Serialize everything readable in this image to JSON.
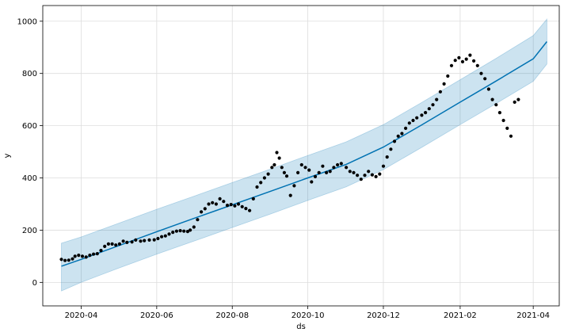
{
  "chart_data": {
    "type": "line",
    "title": "",
    "xlabel": "ds",
    "ylabel": "y",
    "x_range": [
      "2020-03-01",
      "2021-04-22"
    ],
    "ylim": [
      -90,
      1060
    ],
    "grid": true,
    "x_ticks": [
      "2020-04-01",
      "2020-06-01",
      "2020-08-01",
      "2020-10-01",
      "2020-12-01",
      "2021-02-01",
      "2021-04-01"
    ],
    "x_tick_labels": [
      "2020-04",
      "2020-06",
      "2020-08",
      "2020-10",
      "2020-12",
      "2021-02",
      "2021-04"
    ],
    "y_ticks": [
      0,
      200,
      400,
      600,
      800,
      1000
    ],
    "y_tick_labels": [
      "0",
      "200",
      "400",
      "600",
      "800",
      "1000"
    ],
    "colors": {
      "forecast_line": "#0072B2",
      "interval_fill": "#0072B2",
      "observed_points": "#000000"
    },
    "series": [
      {
        "kind": "forecast_line",
        "points": [
          [
            "2020-03-16",
            62
          ],
          [
            "2020-04-01",
            88
          ],
          [
            "2020-05-01",
            140
          ],
          [
            "2020-06-01",
            194
          ],
          [
            "2020-07-01",
            245
          ],
          [
            "2020-08-01",
            297
          ],
          [
            "2020-09-01",
            349
          ],
          [
            "2020-10-01",
            400
          ],
          [
            "2020-11-01",
            452
          ],
          [
            "2020-12-01",
            518
          ],
          [
            "2021-01-01",
            603
          ],
          [
            "2021-02-01",
            690
          ],
          [
            "2021-03-01",
            768
          ],
          [
            "2021-04-01",
            856
          ],
          [
            "2021-04-12",
            922
          ]
        ]
      },
      {
        "kind": "interval_band",
        "upper": [
          [
            "2020-03-16",
            150
          ],
          [
            "2020-04-01",
            174
          ],
          [
            "2020-05-01",
            226
          ],
          [
            "2020-06-01",
            280
          ],
          [
            "2020-07-01",
            330
          ],
          [
            "2020-08-01",
            382
          ],
          [
            "2020-09-01",
            434
          ],
          [
            "2020-10-01",
            486
          ],
          [
            "2020-11-01",
            538
          ],
          [
            "2020-12-01",
            604
          ],
          [
            "2021-01-01",
            689
          ],
          [
            "2021-02-01",
            776
          ],
          [
            "2021-03-01",
            855
          ],
          [
            "2021-04-01",
            945
          ],
          [
            "2021-04-12",
            1008
          ]
        ],
        "lower": [
          [
            "2020-03-16",
            -33
          ],
          [
            "2020-04-01",
            0
          ],
          [
            "2020-05-01",
            54
          ],
          [
            "2020-06-01",
            108
          ],
          [
            "2020-07-01",
            158
          ],
          [
            "2020-08-01",
            210
          ],
          [
            "2020-09-01",
            262
          ],
          [
            "2020-10-01",
            314
          ],
          [
            "2020-11-01",
            366
          ],
          [
            "2020-12-01",
            432
          ],
          [
            "2021-01-01",
            517
          ],
          [
            "2021-02-01",
            604
          ],
          [
            "2021-03-01",
            682
          ],
          [
            "2021-04-01",
            770
          ],
          [
            "2021-04-12",
            836
          ]
        ]
      },
      {
        "kind": "observed_points",
        "points": [
          [
            "2020-03-16",
            88
          ],
          [
            "2020-03-19",
            84
          ],
          [
            "2020-03-22",
            85
          ],
          [
            "2020-03-25",
            90
          ],
          [
            "2020-03-27",
            100
          ],
          [
            "2020-03-30",
            104
          ],
          [
            "2020-04-02",
            100
          ],
          [
            "2020-04-05",
            97
          ],
          [
            "2020-04-08",
            104
          ],
          [
            "2020-04-11",
            108
          ],
          [
            "2020-04-14",
            110
          ],
          [
            "2020-04-17",
            122
          ],
          [
            "2020-04-20",
            138
          ],
          [
            "2020-04-23",
            147
          ],
          [
            "2020-04-26",
            147
          ],
          [
            "2020-04-29",
            143
          ],
          [
            "2020-05-02",
            147
          ],
          [
            "2020-05-05",
            158
          ],
          [
            "2020-05-08",
            153
          ],
          [
            "2020-05-12",
            155
          ],
          [
            "2020-05-15",
            162
          ],
          [
            "2020-05-19",
            158
          ],
          [
            "2020-05-22",
            160
          ],
          [
            "2020-05-26",
            162
          ],
          [
            "2020-05-30",
            163
          ],
          [
            "2020-06-02",
            168
          ],
          [
            "2020-06-05",
            175
          ],
          [
            "2020-06-08",
            178
          ],
          [
            "2020-06-11",
            185
          ],
          [
            "2020-06-14",
            192
          ],
          [
            "2020-06-17",
            196
          ],
          [
            "2020-06-20",
            198
          ],
          [
            "2020-06-23",
            196
          ],
          [
            "2020-06-26",
            195
          ],
          [
            "2020-06-28",
            200
          ],
          [
            "2020-07-01",
            212
          ],
          [
            "2020-07-04",
            240
          ],
          [
            "2020-07-07",
            270
          ],
          [
            "2020-07-10",
            282
          ],
          [
            "2020-07-13",
            300
          ],
          [
            "2020-07-16",
            305
          ],
          [
            "2020-07-19",
            300
          ],
          [
            "2020-07-22",
            320
          ],
          [
            "2020-07-25",
            310
          ],
          [
            "2020-07-28",
            295
          ],
          [
            "2020-07-31",
            298
          ],
          [
            "2020-08-03",
            293
          ],
          [
            "2020-08-06",
            300
          ],
          [
            "2020-08-09",
            290
          ],
          [
            "2020-08-12",
            283
          ],
          [
            "2020-08-15",
            275
          ],
          [
            "2020-08-18",
            320
          ],
          [
            "2020-08-21",
            365
          ],
          [
            "2020-08-24",
            382
          ],
          [
            "2020-08-27",
            400
          ],
          [
            "2020-08-30",
            415
          ],
          [
            "2020-09-02",
            440
          ],
          [
            "2020-09-04",
            450
          ],
          [
            "2020-09-06",
            497
          ],
          [
            "2020-09-08",
            476
          ],
          [
            "2020-09-10",
            440
          ],
          [
            "2020-09-12",
            420
          ],
          [
            "2020-09-14",
            407
          ],
          [
            "2020-09-17",
            333
          ],
          [
            "2020-09-20",
            370
          ],
          [
            "2020-09-23",
            420
          ],
          [
            "2020-09-26",
            450
          ],
          [
            "2020-09-29",
            440
          ],
          [
            "2020-10-02",
            430
          ],
          [
            "2020-10-04",
            385
          ],
          [
            "2020-10-07",
            405
          ],
          [
            "2020-10-10",
            420
          ],
          [
            "2020-10-13",
            445
          ],
          [
            "2020-10-16",
            420
          ],
          [
            "2020-10-19",
            425
          ],
          [
            "2020-10-22",
            440
          ],
          [
            "2020-10-25",
            450
          ],
          [
            "2020-10-28",
            455
          ],
          [
            "2020-11-01",
            440
          ],
          [
            "2020-11-04",
            425
          ],
          [
            "2020-11-07",
            420
          ],
          [
            "2020-11-10",
            410
          ],
          [
            "2020-11-13",
            395
          ],
          [
            "2020-11-16",
            410
          ],
          [
            "2020-11-19",
            425
          ],
          [
            "2020-11-22",
            412
          ],
          [
            "2020-11-25",
            405
          ],
          [
            "2020-11-28",
            415
          ],
          [
            "2020-12-01",
            445
          ],
          [
            "2020-12-04",
            480
          ],
          [
            "2020-12-07",
            510
          ],
          [
            "2020-12-10",
            540
          ],
          [
            "2020-12-13",
            560
          ],
          [
            "2020-12-16",
            570
          ],
          [
            "2020-12-19",
            590
          ],
          [
            "2020-12-22",
            610
          ],
          [
            "2020-12-25",
            620
          ],
          [
            "2020-12-28",
            630
          ],
          [
            "2021-01-01",
            640
          ],
          [
            "2021-01-04",
            650
          ],
          [
            "2021-01-07",
            665
          ],
          [
            "2021-01-10",
            680
          ],
          [
            "2021-01-13",
            700
          ],
          [
            "2021-01-16",
            730
          ],
          [
            "2021-01-19",
            760
          ],
          [
            "2021-01-22",
            790
          ],
          [
            "2021-01-25",
            830
          ],
          [
            "2021-01-28",
            850
          ],
          [
            "2021-01-31",
            860
          ],
          [
            "2021-02-03",
            845
          ],
          [
            "2021-02-06",
            855
          ],
          [
            "2021-02-09",
            870
          ],
          [
            "2021-02-12",
            848
          ],
          [
            "2021-02-15",
            830
          ],
          [
            "2021-02-18",
            800
          ],
          [
            "2021-02-21",
            780
          ],
          [
            "2021-02-24",
            740
          ],
          [
            "2021-02-27",
            700
          ],
          [
            "2021-03-02",
            680
          ],
          [
            "2021-03-05",
            650
          ],
          [
            "2021-03-08",
            620
          ],
          [
            "2021-03-11",
            590
          ],
          [
            "2021-03-14",
            560
          ],
          [
            "2021-03-17",
            690
          ],
          [
            "2021-03-20",
            700
          ]
        ]
      }
    ]
  }
}
